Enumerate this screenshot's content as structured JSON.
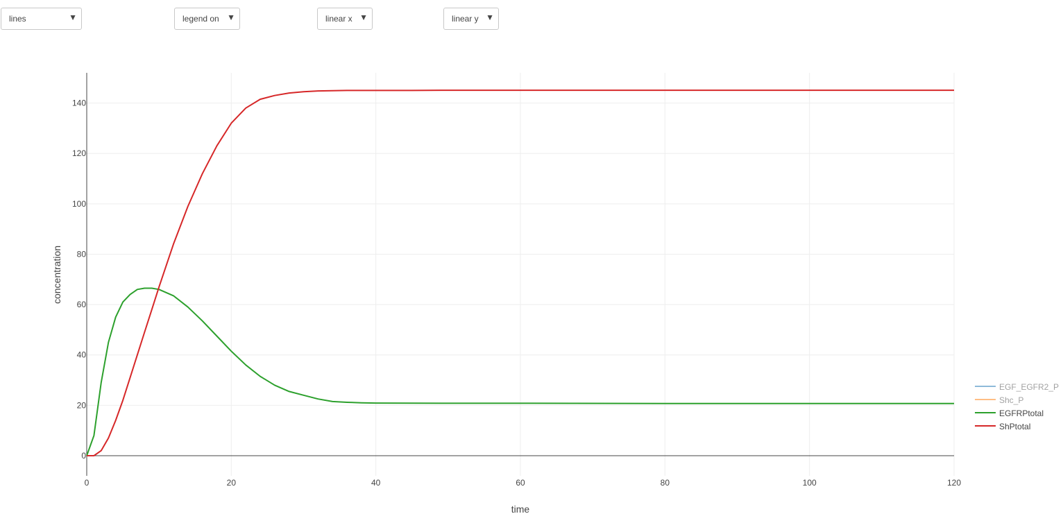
{
  "controls": {
    "plot_mode": {
      "value": "lines"
    },
    "legend_toggle": {
      "value": "legend on"
    },
    "x_scale": {
      "value": "linear x"
    },
    "y_scale": {
      "value": "linear y"
    }
  },
  "icons": {
    "dropdown_caret": "▼"
  },
  "chart_data": {
    "type": "line",
    "xlabel": "time",
    "ylabel": "concentration",
    "xlim": [
      0,
      120
    ],
    "ylim": [
      -8,
      152
    ],
    "xticks": [
      "0",
      "20",
      "40",
      "60",
      "80",
      "100",
      "120"
    ],
    "yticks": [
      "0",
      "20",
      "40",
      "60",
      "80",
      "100",
      "120",
      "140"
    ],
    "grid": true,
    "legend_position": "right",
    "series": [
      {
        "name": "EGF_EGFR2_P",
        "color": "#1f77b4",
        "visible": false,
        "x": [],
        "y": []
      },
      {
        "name": "Shc_P",
        "color": "#ff7f0e",
        "visible": false,
        "x": [],
        "y": []
      },
      {
        "name": "EGFRPtotal",
        "color": "#2ca02c",
        "visible": true,
        "x": [
          0,
          1,
          2,
          3,
          4,
          5,
          6,
          7,
          8,
          9,
          10,
          12,
          14,
          16,
          18,
          20,
          22,
          24,
          26,
          28,
          30,
          32,
          34,
          36,
          38,
          40,
          50,
          60,
          80,
          100,
          120
        ],
        "y": [
          0,
          8,
          29,
          45,
          55,
          61,
          64,
          66,
          66.5,
          66.5,
          66,
          63.5,
          59,
          53.5,
          47.5,
          41.5,
          36,
          31.5,
          28,
          25.5,
          24,
          22.5,
          21.5,
          21.2,
          21,
          20.9,
          20.8,
          20.8,
          20.7,
          20.7,
          20.7
        ]
      },
      {
        "name": "ShPtotal",
        "color": "#d62728",
        "visible": true,
        "x": [
          0,
          1,
          2,
          3,
          4,
          5,
          6,
          7,
          8,
          9,
          10,
          12,
          14,
          16,
          18,
          20,
          22,
          24,
          26,
          28,
          30,
          32,
          34,
          36,
          38,
          40,
          45,
          50,
          60,
          80,
          100,
          120
        ],
        "y": [
          0,
          0,
          2,
          7,
          14,
          22,
          31,
          40,
          49,
          58,
          67,
          84,
          99,
          112,
          123,
          132,
          138,
          141.5,
          143,
          144,
          144.5,
          144.8,
          144.9,
          145,
          145,
          145,
          145,
          145.1,
          145.1,
          145.1,
          145.1,
          145.1
        ]
      }
    ]
  }
}
